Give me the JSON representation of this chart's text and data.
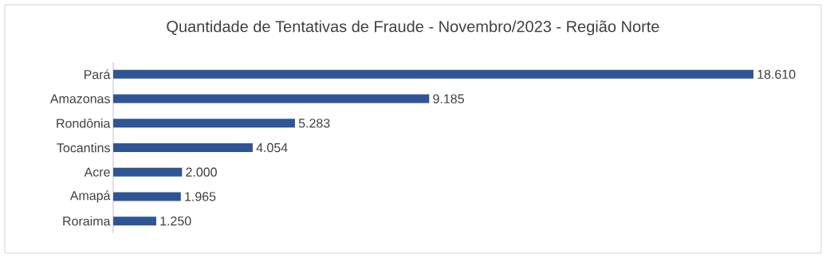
{
  "chart_data": {
    "type": "bar",
    "orientation": "horizontal",
    "title": "Quantidade de Tentativas de Fraude - Novembro/2023 - Região Norte",
    "categories": [
      "Pará",
      "Amazonas",
      "Rondônia",
      "Tocantins",
      "Acre",
      "Amapá",
      "Roraima"
    ],
    "values": [
      18610,
      9185,
      5283,
      4054,
      2000,
      1965,
      1250
    ],
    "value_labels": [
      "18.610",
      "9.185",
      "5.283",
      "4.054",
      "2.000",
      "1.965",
      "1.250"
    ],
    "color": "#2f5597"
  }
}
